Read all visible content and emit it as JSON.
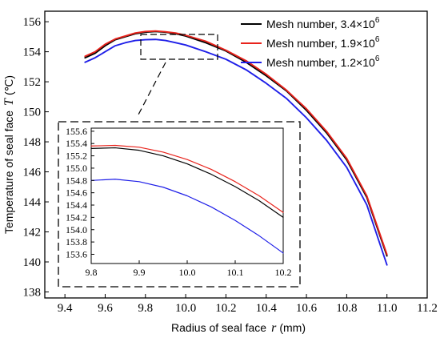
{
  "chart_data": [
    {
      "type": "line",
      "xlabel": "Radius of seal face",
      "xlabel_symbol": "r",
      "xlabel_unit": "(mm)",
      "ylabel": "Temperature of seal face",
      "ylabel_symbol": "T",
      "ylabel_unit": "(℃)",
      "xlim": [
        9.3,
        11.2
      ],
      "ylim": [
        137.6,
        156.7
      ],
      "xticks": [
        "9.4",
        "9.6",
        "9.8",
        "10.0",
        "10.2",
        "10.4",
        "10.6",
        "10.8",
        "11.0",
        "11.2"
      ],
      "yticks": [
        "138",
        "140",
        "142",
        "144",
        "146",
        "148",
        "150",
        "152",
        "154",
        "156"
      ],
      "legend_position": "top-right",
      "series": [
        {
          "name": "Mesh number, 3.4×10",
          "name_exp": "6",
          "color": "#000000",
          "x": [
            9.5,
            9.55,
            9.6,
            9.65,
            9.7,
            9.75,
            9.8,
            9.85,
            9.9,
            9.95,
            10.0,
            10.1,
            10.2,
            10.3,
            10.4,
            10.5,
            10.6,
            10.7,
            10.8,
            10.9,
            11.0
          ],
          "y": [
            153.6,
            153.9,
            154.4,
            154.8,
            155.0,
            155.2,
            155.3,
            155.35,
            155.3,
            155.2,
            155.05,
            154.6,
            154.05,
            153.3,
            152.4,
            151.4,
            150.1,
            148.6,
            146.8,
            144.3,
            140.4
          ]
        },
        {
          "name": "Mesh number, 1.9×10",
          "name_exp": "6",
          "color": "#e8231c",
          "x": [
            9.5,
            9.55,
            9.6,
            9.65,
            9.7,
            9.75,
            9.8,
            9.85,
            9.9,
            9.95,
            10.0,
            10.1,
            10.2,
            10.3,
            10.4,
            10.5,
            10.6,
            10.7,
            10.8,
            10.9,
            11.0
          ],
          "y": [
            153.7,
            154.0,
            154.5,
            154.85,
            155.05,
            155.25,
            155.35,
            155.38,
            155.33,
            155.25,
            155.1,
            154.7,
            154.1,
            153.4,
            152.5,
            151.45,
            150.2,
            148.7,
            146.9,
            144.4,
            140.5
          ]
        },
        {
          "name": "Mesh number, 1.2×10",
          "name_exp": "6",
          "color": "#1f1fe8",
          "x": [
            9.5,
            9.55,
            9.6,
            9.65,
            9.7,
            9.75,
            9.8,
            9.85,
            9.9,
            9.95,
            10.0,
            10.1,
            10.2,
            10.3,
            10.4,
            10.5,
            10.6,
            10.7,
            10.8,
            10.9,
            11.0
          ],
          "y": [
            153.3,
            153.6,
            154.0,
            154.4,
            154.6,
            154.75,
            154.8,
            154.82,
            154.75,
            154.6,
            154.45,
            154.0,
            153.5,
            152.8,
            151.9,
            150.9,
            149.6,
            148.1,
            146.3,
            143.8,
            139.8
          ]
        }
      ]
    },
    {
      "type": "line",
      "role": "inset",
      "xlim": [
        9.8,
        10.2
      ],
      "ylim": [
        153.45,
        155.65
      ],
      "xticks": [
        "9.8",
        "9.9",
        "10.0",
        "10.1",
        "10.2"
      ],
      "yticks": [
        "153.6",
        "153.8",
        "154.0",
        "154.2",
        "154.4",
        "154.6",
        "154.8",
        "155.0",
        "155.2",
        "155.4",
        "155.6"
      ],
      "series": [
        {
          "name": "Mesh number, 3.4×10",
          "color": "#000000",
          "x": [
            9.8,
            9.85,
            9.9,
            9.95,
            10.0,
            10.05,
            10.1,
            10.15,
            10.2
          ],
          "y": [
            155.32,
            155.33,
            155.29,
            155.2,
            155.07,
            154.9,
            154.7,
            154.47,
            154.2
          ]
        },
        {
          "name": "Mesh number, 1.9×10",
          "color": "#e8231c",
          "x": [
            9.8,
            9.85,
            9.9,
            9.95,
            10.0,
            10.05,
            10.1,
            10.15,
            10.2
          ],
          "y": [
            155.36,
            155.37,
            155.34,
            155.26,
            155.14,
            154.98,
            154.78,
            154.55,
            154.28
          ]
        },
        {
          "name": "Mesh number, 1.2×10",
          "color": "#1f1fe8",
          "x": [
            9.8,
            9.85,
            9.9,
            9.95,
            10.0,
            10.05,
            10.1,
            10.15,
            10.2
          ],
          "y": [
            154.8,
            154.82,
            154.78,
            154.69,
            154.55,
            154.37,
            154.15,
            153.9,
            153.62
          ]
        }
      ]
    }
  ]
}
